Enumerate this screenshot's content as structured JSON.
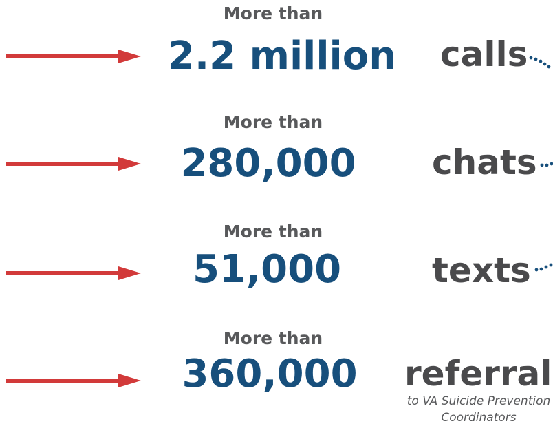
{
  "rows": [
    {
      "prefix": "More than",
      "number": "2.2 million",
      "label": "calls"
    },
    {
      "prefix": "More than",
      "number": "280,000",
      "label": "chats"
    },
    {
      "prefix": "More than",
      "number": "51,000",
      "label": "texts"
    },
    {
      "prefix": "More than",
      "number": "360,000",
      "label": "referrals",
      "note": [
        "to VA Suicide Prevention",
        "Coordinators"
      ]
    }
  ]
}
